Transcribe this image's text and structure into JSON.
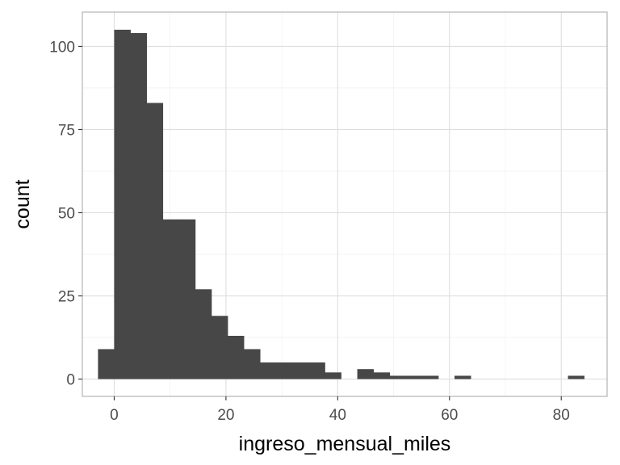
{
  "chart_data": {
    "type": "bar",
    "xlabel": "ingreso_mensual_miles",
    "ylabel": "count",
    "xlim": [
      -5.7,
      88.2
    ],
    "ylim": [
      -5.2,
      110.3
    ],
    "x_ticks": [
      0,
      20,
      40,
      60,
      80
    ],
    "x_tick_labels": [
      "0",
      "20",
      "40",
      "60",
      "80"
    ],
    "x_minor_ticks": [
      -10,
      10,
      30,
      50,
      70
    ],
    "y_ticks": [
      0,
      25,
      50,
      75,
      100
    ],
    "y_tick_labels": [
      "0",
      "25",
      "50",
      "75",
      "100"
    ],
    "y_minor_ticks": [
      12.5,
      37.5,
      62.5,
      87.5
    ],
    "bin_width": 2.9,
    "bins": [
      {
        "x": -1.45,
        "count": 9
      },
      {
        "x": 1.45,
        "count": 105
      },
      {
        "x": 4.35,
        "count": 104
      },
      {
        "x": 7.25,
        "count": 83
      },
      {
        "x": 10.15,
        "count": 48
      },
      {
        "x": 13.05,
        "count": 48
      },
      {
        "x": 15.95,
        "count": 27
      },
      {
        "x": 18.85,
        "count": 19
      },
      {
        "x": 21.75,
        "count": 13
      },
      {
        "x": 24.65,
        "count": 9
      },
      {
        "x": 27.55,
        "count": 5
      },
      {
        "x": 30.45,
        "count": 5
      },
      {
        "x": 33.35,
        "count": 5
      },
      {
        "x": 36.25,
        "count": 5
      },
      {
        "x": 39.15,
        "count": 2
      },
      {
        "x": 42.05,
        "count": 0
      },
      {
        "x": 44.95,
        "count": 3
      },
      {
        "x": 47.85,
        "count": 2
      },
      {
        "x": 50.75,
        "count": 1
      },
      {
        "x": 53.65,
        "count": 1
      },
      {
        "x": 56.55,
        "count": 1
      },
      {
        "x": 59.45,
        "count": 0
      },
      {
        "x": 62.35,
        "count": 1
      },
      {
        "x": 65.25,
        "count": 0
      },
      {
        "x": 68.15,
        "count": 0
      },
      {
        "x": 71.05,
        "count": 0
      },
      {
        "x": 73.95,
        "count": 0
      },
      {
        "x": 76.85,
        "count": 0
      },
      {
        "x": 79.75,
        "count": 0
      },
      {
        "x": 82.65,
        "count": 1
      }
    ],
    "grid": true,
    "theme": "light",
    "colors": {
      "bar": "#474747",
      "grid_major": "#dedede",
      "grid_minor": "#eeeeee",
      "panel_border": "#b3b3b3",
      "tick_text": "#4d4d4d",
      "title_text": "#000000"
    }
  }
}
